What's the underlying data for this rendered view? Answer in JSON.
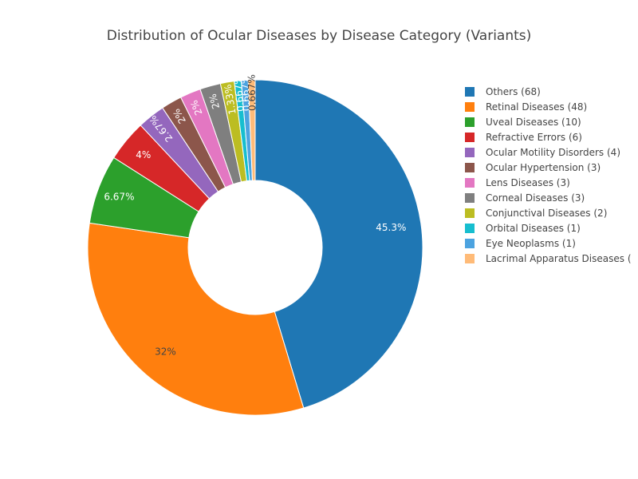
{
  "chart_data": {
    "type": "pie",
    "hole": true,
    "title": "Distribution of Ocular Diseases by Disease Category (Variants)",
    "legend_position": "right",
    "slices": [
      {
        "label": "Others",
        "value": 68,
        "percent_label": "45.3%",
        "color": "#1f77b4",
        "legend": "Others (68)"
      },
      {
        "label": "Retinal Diseases",
        "value": 48,
        "percent_label": "32%",
        "color": "#ff7f0e",
        "legend": "Retinal Diseases (48)"
      },
      {
        "label": "Uveal Diseases",
        "value": 10,
        "percent_label": "6.67%",
        "color": "#2ca02c",
        "legend": "Uveal Diseases (10)"
      },
      {
        "label": "Refractive Errors",
        "value": 6,
        "percent_label": "4%",
        "color": "#d62728",
        "legend": "Refractive Errors (6)"
      },
      {
        "label": "Ocular Motility Disorders",
        "value": 4,
        "percent_label": "2.67%",
        "color": "#9467bd",
        "legend": "Ocular Motility Disorders (4)"
      },
      {
        "label": "Ocular Hypertension",
        "value": 3,
        "percent_label": "2%",
        "color": "#8c564b",
        "legend": "Ocular Hypertension (3)"
      },
      {
        "label": "Lens Diseases",
        "value": 3,
        "percent_label": "2%",
        "color": "#e377c2",
        "legend": "Lens Diseases (3)"
      },
      {
        "label": "Corneal Diseases",
        "value": 3,
        "percent_label": "2%",
        "color": "#7f7f7f",
        "legend": "Corneal Diseases (3)"
      },
      {
        "label": "Conjunctival Diseases",
        "value": 2,
        "percent_label": "1.33%",
        "color": "#bcbd22",
        "legend": "Conjunctival Diseases (2)"
      },
      {
        "label": "Orbital Diseases",
        "value": 1,
        "percent_label": "0.667%",
        "color": "#17becf",
        "legend": "Orbital Diseases (1)"
      },
      {
        "label": "Eye Neoplasms",
        "value": 1,
        "percent_label": "0.667%",
        "color": "#4ca3e0",
        "legend": "Eye Neoplasms (1)"
      },
      {
        "label": "Lacrimal Apparatus Diseases",
        "value": 1,
        "percent_label": "0.667%",
        "color": "#ffbb78",
        "legend": "Lacrimal Apparatus Diseases ("
      }
    ]
  }
}
